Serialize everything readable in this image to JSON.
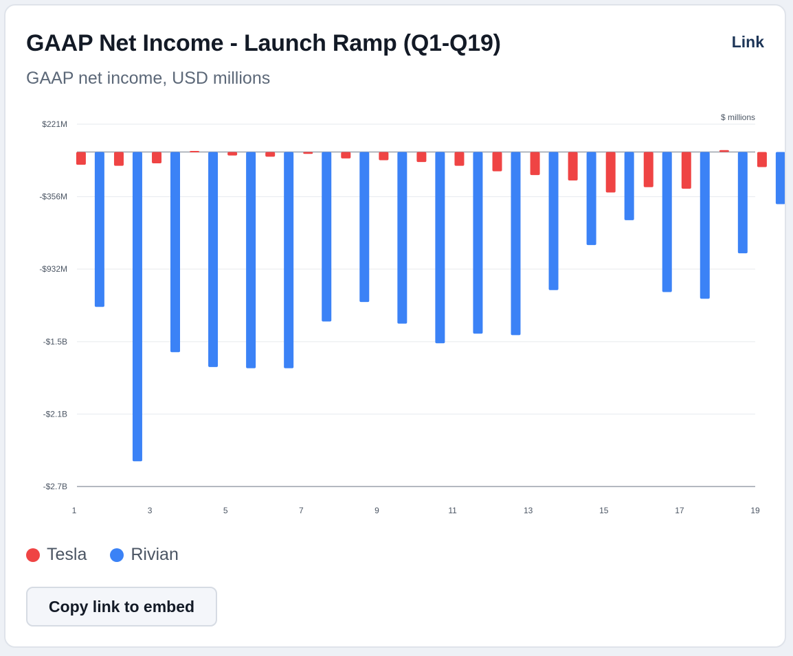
{
  "header": {
    "title": "GAAP Net Income - Launch Ramp (Q1-Q19)",
    "subtitle": "GAAP net income, USD millions",
    "link_label": "Link"
  },
  "embed": {
    "button_label": "Copy link to embed"
  },
  "colors": {
    "tesla": "#ef4444",
    "rivian": "#3b82f6",
    "grid": "#e6e9ee",
    "axis": "#9aa1ab"
  },
  "chart_data": {
    "type": "bar",
    "unit_label": "$ millions",
    "x": [
      1,
      2,
      3,
      4,
      5,
      6,
      7,
      8,
      9,
      10,
      11,
      12,
      13,
      14,
      15,
      16,
      17,
      18,
      19
    ],
    "x_tick_labels": [
      "1",
      "3",
      "5",
      "7",
      "9",
      "11",
      "13",
      "15",
      "17",
      "19"
    ],
    "y_tick_labels": [
      "$221M",
      "-$356M",
      "-$932M",
      "-$1.5B",
      "-$2.1B",
      "-$2.7B"
    ],
    "y_ticks": [
      221,
      -356,
      -932,
      -1509,
      -2085,
      -2662
    ],
    "ylim": [
      -2662,
      221
    ],
    "grid": true,
    "legend_position": "bottom-left",
    "series": [
      {
        "name": "Tesla",
        "values": [
          -102,
          -110,
          -90,
          8,
          -28,
          -38,
          -15,
          -51,
          -66,
          -80,
          -110,
          -154,
          -184,
          -227,
          -322,
          -280,
          -292,
          15,
          -120
        ]
      },
      {
        "name": "Rivian",
        "values": [
          -1233,
          -2461,
          -1593,
          -1711,
          -1721,
          -1721,
          -1349,
          -1194,
          -1366,
          -1522,
          -1446,
          -1457,
          -1099,
          -741,
          -543,
          -1115,
          -1168,
          -806,
          -415
        ]
      }
    ]
  }
}
